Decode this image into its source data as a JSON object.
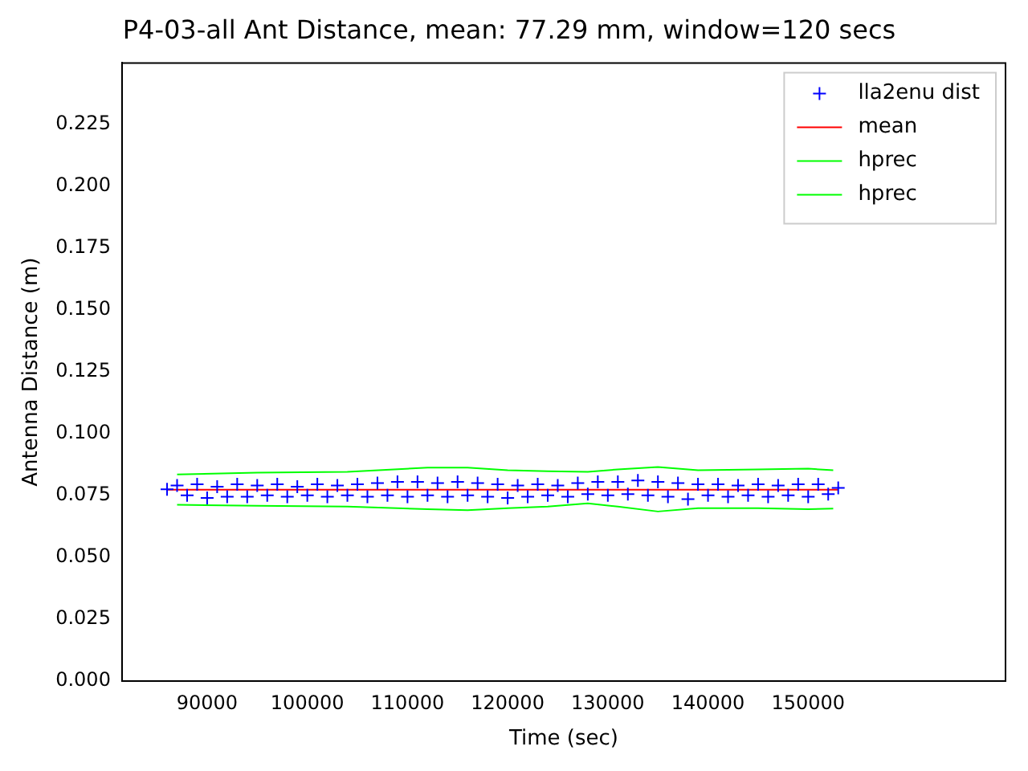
{
  "chart_data": {
    "type": "scatter",
    "title": "P4-03-all Ant Distance, mean: 77.29 mm, window=120 secs",
    "xlabel": "Time (sec)",
    "ylabel": "Antenna Distance (m)",
    "xlim": [
      81500,
      169700
    ],
    "ylim": [
      0,
      0.2497
    ],
    "xticks": [
      90000,
      100000,
      110000,
      120000,
      130000,
      140000,
      150000
    ],
    "yticks": [
      {
        "value": 0,
        "label": "0.000"
      },
      {
        "value": 0.025,
        "label": "0.025"
      },
      {
        "value": 0.05,
        "label": "0.050"
      },
      {
        "value": 0.075,
        "label": "0.075"
      },
      {
        "value": 0.1,
        "label": "0.100"
      },
      {
        "value": 0.125,
        "label": "0.125"
      },
      {
        "value": 0.15,
        "label": "0.150"
      },
      {
        "value": 0.175,
        "label": "0.175"
      },
      {
        "value": 0.2,
        "label": "0.200"
      },
      {
        "value": 0.225,
        "label": "0.225"
      }
    ],
    "grid": false,
    "legend": "top right",
    "series": [
      {
        "name": "lla2enu dist",
        "type": "scatter",
        "marker": "cross",
        "color": "#0000ff",
        "x": [
          86000,
          87000,
          88000,
          89000,
          90000,
          91000,
          92000,
          93000,
          94000,
          95000,
          96000,
          97000,
          98000,
          99000,
          100000,
          101000,
          102000,
          103000,
          104000,
          105000,
          106000,
          107000,
          108000,
          109000,
          110000,
          111000,
          112000,
          113000,
          114000,
          115000,
          116000,
          117000,
          118000,
          119000,
          120000,
          121000,
          122000,
          123000,
          124000,
          125000,
          126000,
          127000,
          128000,
          129000,
          130000,
          131000,
          132000,
          133000,
          134000,
          135000,
          136000,
          137000,
          138000,
          139000,
          140000,
          141000,
          142000,
          143000,
          144000,
          145000,
          146000,
          147000,
          148000,
          149000,
          150000,
          151000,
          152000,
          153000
        ],
        "values": [
          0.0775,
          0.079,
          0.075,
          0.0795,
          0.074,
          0.0785,
          0.0745,
          0.0795,
          0.0745,
          0.079,
          0.075,
          0.0795,
          0.0745,
          0.0785,
          0.075,
          0.0795,
          0.0745,
          0.079,
          0.075,
          0.0795,
          0.0745,
          0.08,
          0.075,
          0.0805,
          0.0745,
          0.0805,
          0.075,
          0.08,
          0.0745,
          0.0805,
          0.075,
          0.08,
          0.0745,
          0.0795,
          0.074,
          0.079,
          0.0745,
          0.0795,
          0.075,
          0.079,
          0.0745,
          0.08,
          0.0755,
          0.0805,
          0.075,
          0.0805,
          0.0755,
          0.081,
          0.075,
          0.0805,
          0.0745,
          0.08,
          0.0735,
          0.0795,
          0.075,
          0.0795,
          0.0745,
          0.079,
          0.075,
          0.0795,
          0.0745,
          0.079,
          0.075,
          0.0795,
          0.0745,
          0.0795,
          0.0755,
          0.078
        ]
      },
      {
        "name": "mean",
        "type": "line",
        "marker": "none",
        "color": "#ff0000",
        "x": [
          86000,
          153000
        ],
        "values": [
          0.0773,
          0.0773
        ]
      },
      {
        "name": "hprec",
        "type": "line",
        "marker": "none",
        "color": "#00ff00",
        "x": [
          87000,
          95000,
          104000,
          112000,
          116000,
          120000,
          124000,
          128000,
          131000,
          135000,
          139000,
          145000,
          150000,
          152500
        ],
        "values": [
          0.0835,
          0.0842,
          0.0845,
          0.0862,
          0.0862,
          0.0852,
          0.0848,
          0.0845,
          0.0855,
          0.0865,
          0.0852,
          0.0855,
          0.0858,
          0.0852
        ]
      },
      {
        "name": "hprec",
        "type": "line",
        "marker": "none",
        "color": "#00ff00",
        "x": [
          87000,
          95000,
          104000,
          112000,
          116000,
          120000,
          124000,
          128000,
          131000,
          135000,
          139000,
          145000,
          150000,
          152500
        ],
        "values": [
          0.0712,
          0.0708,
          0.0705,
          0.0694,
          0.069,
          0.0698,
          0.0705,
          0.0718,
          0.0705,
          0.0685,
          0.0698,
          0.0698,
          0.0694,
          0.0697
        ]
      }
    ]
  }
}
